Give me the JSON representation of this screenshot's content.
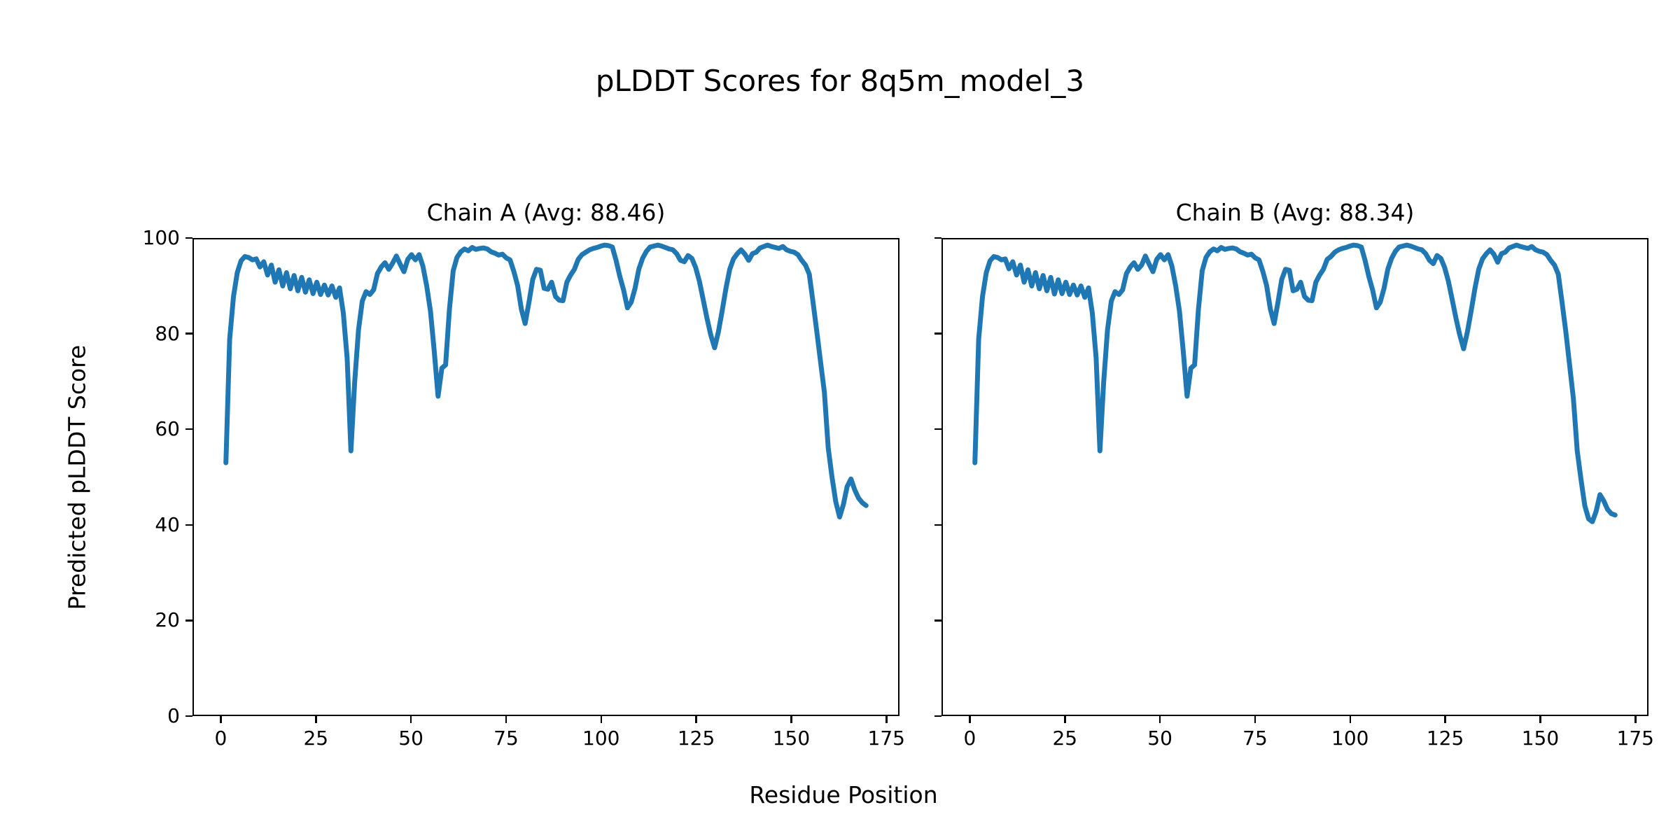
{
  "title": "pLDDT Scores for 8q5m_model_3",
  "xlabel": "Residue Position",
  "ylabel": "Predicted pLDDT Score",
  "chart_data": [
    {
      "id": "chain-a",
      "type": "line",
      "title": "Chain A (Avg: 88.46)",
      "chain": "A",
      "avg": 88.46,
      "line_color": "#1f77b4",
      "x_ticks": [
        0,
        25,
        50,
        75,
        100,
        125,
        150,
        175
      ],
      "y_ticks": [
        0,
        20,
        40,
        60,
        80,
        100
      ],
      "xlim": [
        -7.45,
        178.45
      ],
      "ylim": [
        0,
        100
      ],
      "x_start": 1,
      "y_tick_labels": true,
      "grid": false,
      "values": [
        53.0,
        79.0,
        88.0,
        93.0,
        95.5,
        96.4,
        96.2,
        95.7,
        95.9,
        94.2,
        95.3,
        92.5,
        94.6,
        91.0,
        93.6,
        90.2,
        93.0,
        89.6,
        92.4,
        89.2,
        92.0,
        88.9,
        91.5,
        88.6,
        91.0,
        88.4,
        90.4,
        88.3,
        90.2,
        87.8,
        89.8,
        84.5,
        75.0,
        55.5,
        70.0,
        81.0,
        87.0,
        89.0,
        88.4,
        89.4,
        92.8,
        94.2,
        95.1,
        93.7,
        95.0,
        96.5,
        94.8,
        93.2,
        95.8,
        96.8,
        95.7,
        96.8,
        94.4,
        90.2,
        84.9,
        76.5,
        67.0,
        72.9,
        73.6,
        85.3,
        93.4,
        96.2,
        97.4,
        98.0,
        97.6,
        98.3,
        97.9,
        98.1,
        98.2,
        98.0,
        97.4,
        97.1,
        96.7,
        96.9,
        96.1,
        95.7,
        93.3,
        90.3,
        85.3,
        82.3,
        86.8,
        91.6,
        93.7,
        93.5,
        89.7,
        89.5,
        91.0,
        88.0,
        87.2,
        87.1,
        91.0,
        92.5,
        93.7,
        95.8,
        96.8,
        97.3,
        97.8,
        98.1,
        98.3,
        98.6,
        98.8,
        98.7,
        98.4,
        95.6,
        92.2,
        89.3,
        85.6,
        86.8,
        89.7,
        93.7,
        96.0,
        97.5,
        98.4,
        98.6,
        98.8,
        98.6,
        98.3,
        98.0,
        97.8,
        97.0,
        95.6,
        95.3,
        96.6,
        96.0,
        94.1,
        91.2,
        87.3,
        83.4,
        79.9,
        77.2,
        80.5,
        84.9,
        89.7,
        93.7,
        95.9,
        97.0,
        97.8,
        96.9,
        95.6,
        97.0,
        97.3,
        98.2,
        98.5,
        98.8,
        98.5,
        98.3,
        98.1,
        98.5,
        97.8,
        97.5,
        97.3,
        96.8,
        95.6,
        94.6,
        92.7,
        86.8,
        80.5,
        74.1,
        67.8,
        56.1,
        50.0,
        44.8,
        41.6,
        44.2,
        48.0,
        49.6,
        47.3,
        45.6,
        44.6,
        44.0
      ]
    },
    {
      "id": "chain-b",
      "type": "line",
      "title": "Chain B (Avg: 88.34)",
      "chain": "B",
      "avg": 88.34,
      "line_color": "#1f77b4",
      "x_ticks": [
        0,
        25,
        50,
        75,
        100,
        125,
        150,
        175
      ],
      "y_ticks": [
        0,
        20,
        40,
        60,
        80,
        100
      ],
      "xlim": [
        -7.45,
        178.45
      ],
      "ylim": [
        0,
        100
      ],
      "x_start": 1,
      "y_tick_labels": false,
      "grid": false,
      "values": [
        53.0,
        79.0,
        88.0,
        93.0,
        95.5,
        96.4,
        96.2,
        95.7,
        95.9,
        93.8,
        95.3,
        92.5,
        94.6,
        91.0,
        93.6,
        90.2,
        93.0,
        89.6,
        92.4,
        89.2,
        92.0,
        88.5,
        91.5,
        88.6,
        91.0,
        88.4,
        90.4,
        88.3,
        90.2,
        87.8,
        89.8,
        84.5,
        75.0,
        55.5,
        70.0,
        81.0,
        87.0,
        89.0,
        88.4,
        89.4,
        92.8,
        94.2,
        95.1,
        93.7,
        94.6,
        96.5,
        94.8,
        93.2,
        95.8,
        96.8,
        95.7,
        96.8,
        94.4,
        90.2,
        84.9,
        76.5,
        67.0,
        72.9,
        73.6,
        85.3,
        93.4,
        96.2,
        97.4,
        98.0,
        97.6,
        98.3,
        97.9,
        98.1,
        98.2,
        98.0,
        97.4,
        97.1,
        96.7,
        96.9,
        96.1,
        95.7,
        93.3,
        90.3,
        85.3,
        82.3,
        86.8,
        91.6,
        93.7,
        93.5,
        89.2,
        89.5,
        91.0,
        88.0,
        87.2,
        87.1,
        91.0,
        92.5,
        93.7,
        95.8,
        96.4,
        97.3,
        97.8,
        98.1,
        98.3,
        98.6,
        98.8,
        98.7,
        98.4,
        95.6,
        92.2,
        89.3,
        85.6,
        86.8,
        89.7,
        93.7,
        96.0,
        97.5,
        98.4,
        98.6,
        98.8,
        98.6,
        98.3,
        98.0,
        97.8,
        97.0,
        95.6,
        94.9,
        96.6,
        96.0,
        94.1,
        91.2,
        87.3,
        83.4,
        79.9,
        77.0,
        80.5,
        84.9,
        89.7,
        93.7,
        95.9,
        97.0,
        97.8,
        96.9,
        95.2,
        97.0,
        97.3,
        98.2,
        98.5,
        98.8,
        98.5,
        98.3,
        98.1,
        98.5,
        97.8,
        97.5,
        97.3,
        96.8,
        95.6,
        94.6,
        92.7,
        86.8,
        80.5,
        73.5,
        66.5,
        55.5,
        49.5,
        44.0,
        41.2,
        40.6,
        42.8,
        46.3,
        45.0,
        43.2,
        42.3,
        42.0
      ]
    }
  ]
}
